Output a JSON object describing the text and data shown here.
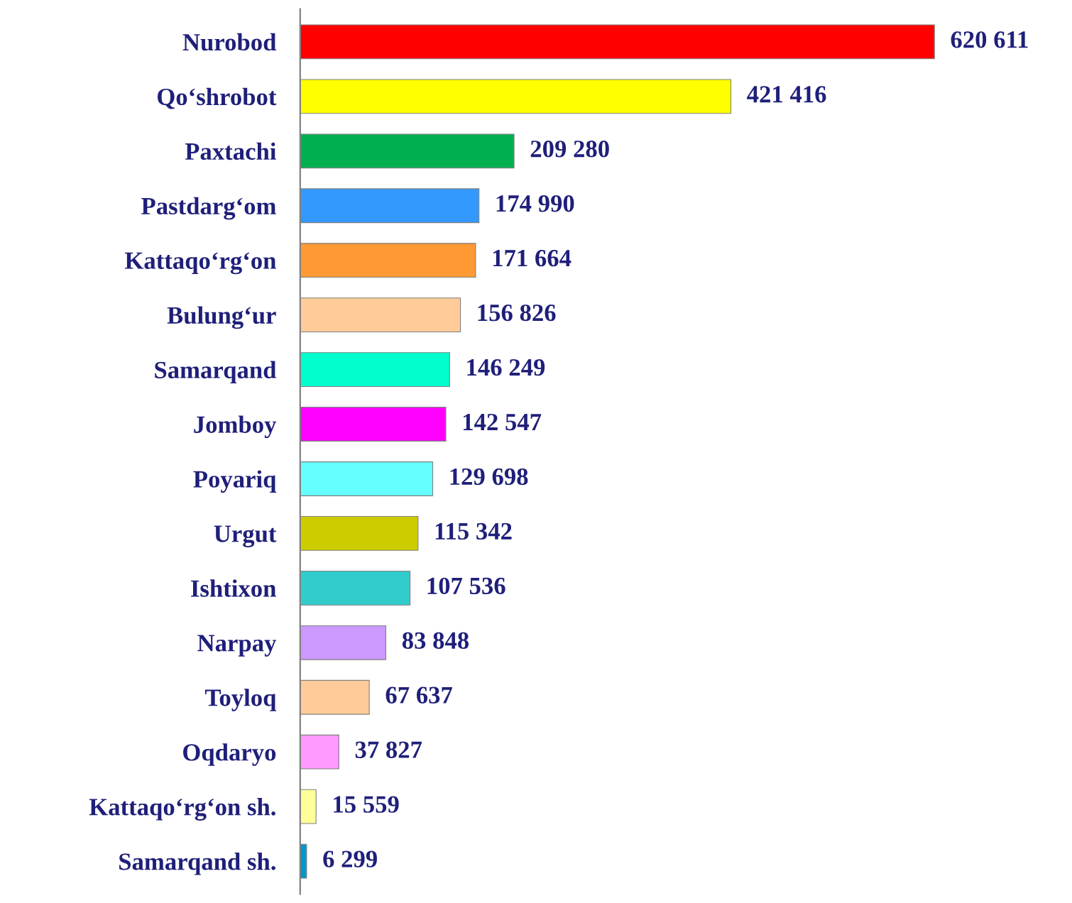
{
  "chart_data": {
    "type": "bar",
    "orientation": "horizontal",
    "categories": [
      "Nurobod",
      "Qo‘shrobot",
      "Paxtachi",
      "Pastdarg‘om",
      "Kattaqo‘rg‘on",
      "Bulung‘ur",
      "Samarqand",
      "Jomboy",
      "Poyariq",
      "Urgut",
      "Ishtixon",
      "Narpay",
      "Toyloq",
      "Oqdaryo",
      "Kattaqo‘rg‘on sh.",
      "Samarqand sh."
    ],
    "values": [
      620611,
      421416,
      209280,
      174990,
      171664,
      156826,
      146249,
      142547,
      129698,
      115342,
      107536,
      83848,
      67637,
      37827,
      15559,
      6299
    ],
    "value_labels": [
      "620 611",
      "421 416",
      "209 280",
      "174 990",
      "171 664",
      "156 826",
      "146 249",
      "142 547",
      "129 698",
      "115 342",
      "107 536",
      "83 848",
      "67 637",
      "37 827",
      "15 559",
      "6 299"
    ],
    "colors": [
      "#ff0000",
      "#ffff00",
      "#00b050",
      "#3399ff",
      "#ff9933",
      "#ffcc99",
      "#00ffcc",
      "#ff00ff",
      "#66ffff",
      "#cccc00",
      "#33cccc",
      "#cc99ff",
      "#ffcc99",
      "#ff99ff",
      "#ffff99",
      "#0099cc"
    ],
    "grid": false,
    "legend": false
  }
}
